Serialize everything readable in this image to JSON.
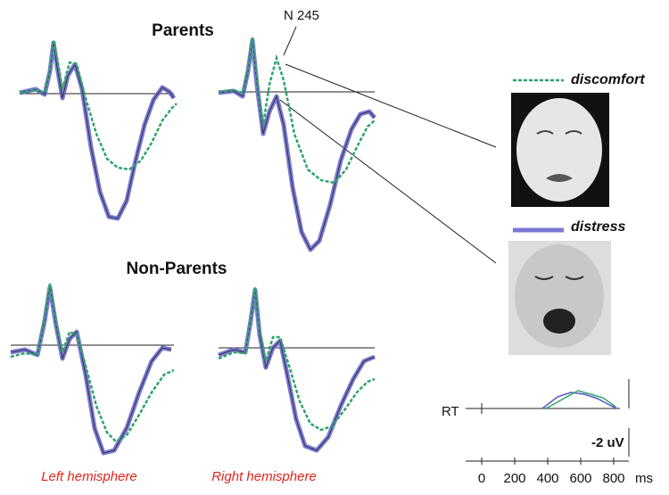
{
  "figure": {
    "groups": [
      "Parents",
      "Non-Parents"
    ],
    "annotation": "N 245",
    "legend": [
      "discomfort",
      "distress"
    ],
    "hemispheres": [
      "Left hemisphere",
      "Right hemisphere"
    ],
    "rt_label": "RT",
    "amplitude_scale": "-2 uV",
    "time_ticks": [
      "0",
      "200",
      "400",
      "600",
      "800"
    ],
    "time_unit": "ms"
  }
}
